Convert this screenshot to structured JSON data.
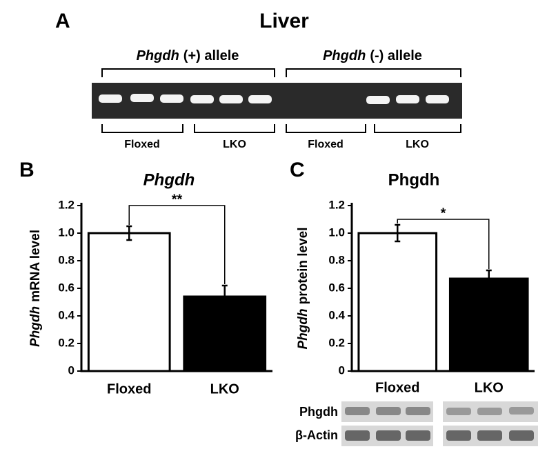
{
  "figure_title": "Liver",
  "panel_a": {
    "letter": "A",
    "groups": [
      {
        "gene": "Phgdh",
        "label": "(+) allele"
      },
      {
        "gene": "Phgdh",
        "label": "(-) allele"
      }
    ],
    "lanes": [
      "Floxed",
      "LKO",
      "Floxed",
      "LKO"
    ]
  },
  "chart_data": [
    {
      "type": "bar",
      "letter": "B",
      "title": "Phgdh",
      "italic_title": true,
      "ylabel": {
        "gene": "Phgdh",
        "label": "mRNA level"
      },
      "categories": [
        "Floxed",
        "LKO"
      ],
      "values": [
        1.0,
        0.54
      ],
      "errors": [
        0.05,
        0.08
      ],
      "colors": [
        "#ffffff",
        "#000000"
      ],
      "ylim": [
        0,
        1.2
      ],
      "yticks": [
        0,
        0.2,
        0.4,
        0.6,
        0.8,
        {
          "value": 1,
          "label": "1.0"
        },
        1.2
      ],
      "significance": "**"
    },
    {
      "type": "bar",
      "letter": "C",
      "title": "Phgdh",
      "italic_title": false,
      "ylabel": {
        "gene": "Phgdh",
        "label": "protein level"
      },
      "categories": [
        "Floxed",
        "LKO"
      ],
      "values": [
        1.0,
        0.67
      ],
      "errors": [
        0.06,
        0.06
      ],
      "colors": [
        "#ffffff",
        "#000000"
      ],
      "ylim": [
        0,
        1.2
      ],
      "yticks": [
        0,
        0.2,
        0.4,
        0.6,
        0.8,
        {
          "value": 1,
          "label": "1.0"
        },
        1.2
      ],
      "significance": "*",
      "blot_rows": [
        "Phgdh",
        "β-Actin"
      ]
    }
  ]
}
